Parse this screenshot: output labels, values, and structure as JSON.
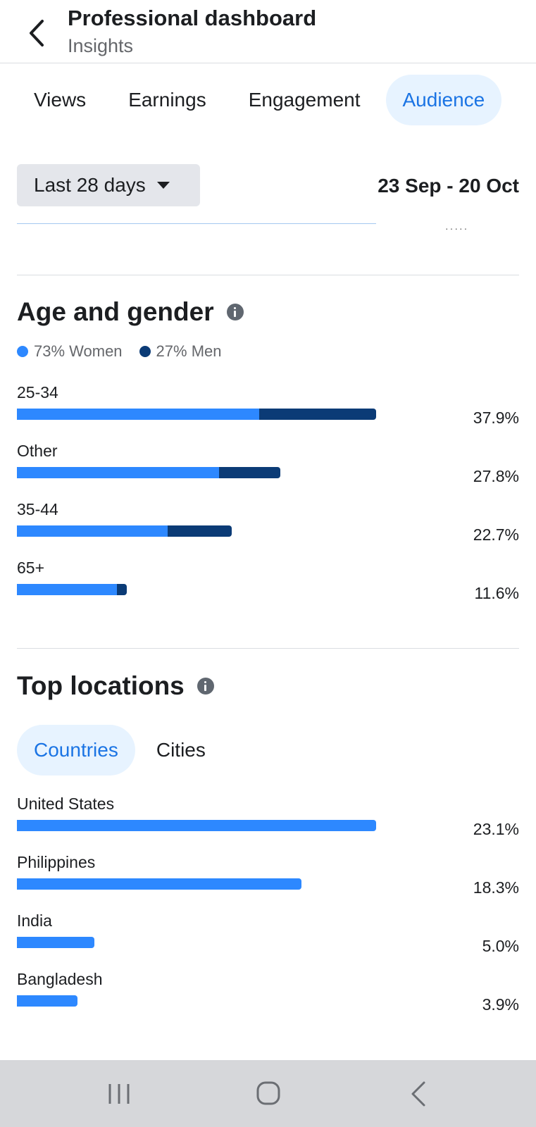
{
  "header": {
    "title": "Professional dashboard",
    "subtitle": "Insights",
    "back_icon": "chevron-left-icon"
  },
  "tabs": [
    {
      "label": "Views",
      "active": false
    },
    {
      "label": "Earnings",
      "active": false
    },
    {
      "label": "Engagement",
      "active": false
    },
    {
      "label": "Audience",
      "active": true
    }
  ],
  "date_range": {
    "selector_label": "Last 28 days",
    "range_text": "23 Sep - 20 Oct"
  },
  "age_gender": {
    "title": "Age and gender",
    "legend": [
      {
        "label": "73% Women",
        "color": "#2d88ff"
      },
      {
        "label": "27% Men",
        "color": "#0b3b76"
      }
    ],
    "rows": [
      {
        "label": "25-34",
        "percent_text": "37.9%",
        "value": 37.9,
        "women_share": 0.675
      },
      {
        "label": "Other",
        "percent_text": "27.8%",
        "value": 27.8,
        "women_share": 0.768
      },
      {
        "label": "35-44",
        "percent_text": "22.7%",
        "value": 22.7,
        "women_share": 0.7
      },
      {
        "label": "65+",
        "percent_text": "11.6%",
        "value": 11.6,
        "women_share": 0.91
      }
    ]
  },
  "top_locations": {
    "title": "Top locations",
    "sub_tabs": [
      {
        "label": "Countries",
        "active": true
      },
      {
        "label": "Cities",
        "active": false
      }
    ],
    "rows": [
      {
        "label": "United States",
        "percent_text": "23.1%",
        "value": 23.1
      },
      {
        "label": "Philippines",
        "percent_text": "18.3%",
        "value": 18.3
      },
      {
        "label": "India",
        "percent_text": "5.0%",
        "value": 5.0
      },
      {
        "label": "Bangladesh",
        "percent_text": "3.9%",
        "value": 3.9
      }
    ]
  },
  "nav_bar": {
    "recents_icon": "recent-apps-icon",
    "home_icon": "home-icon",
    "back_icon": "back-icon"
  }
}
